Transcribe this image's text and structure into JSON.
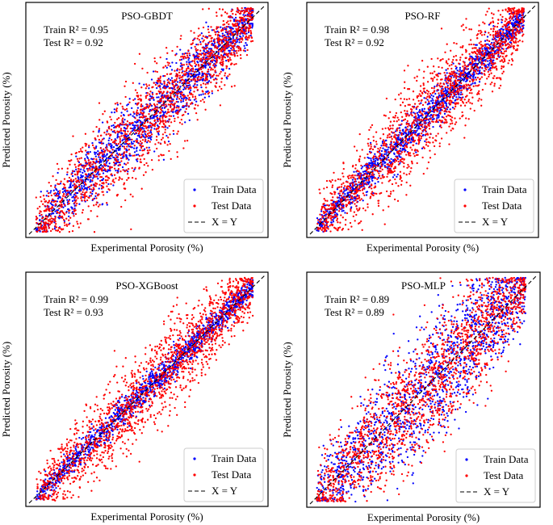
{
  "chart_data": [
    {
      "type": "scatter",
      "title": "PSO-GBDT",
      "xlabel": "Experimental Porosity (%)",
      "ylabel": "Predicted Porosity (%)",
      "annotations": [
        "Train R² = 0.95",
        "Test R² = 0.92"
      ],
      "xlim": [
        0,
        1
      ],
      "ylim": [
        0,
        1
      ],
      "series": [
        {
          "name": "Train Data",
          "color": "#0000ff",
          "r2": 0.95
        },
        {
          "name": "Test Data",
          "color": "#ff0000",
          "r2": 0.92
        }
      ],
      "reference_line": {
        "name": "X = Y",
        "style": "dashed",
        "color": "#000000"
      },
      "legend": [
        "Train Data",
        "Test Data",
        "X = Y"
      ],
      "legend_position": "bottom-right"
    },
    {
      "type": "scatter",
      "title": "PSO-RF",
      "xlabel": "Experimental Porosity (%)",
      "ylabel": "Predicted Porosity (%)",
      "annotations": [
        "Train R² = 0.98",
        "Test R² = 0.92"
      ],
      "xlim": [
        0,
        1
      ],
      "ylim": [
        0,
        1
      ],
      "series": [
        {
          "name": "Train Data",
          "color": "#0000ff",
          "r2": 0.98
        },
        {
          "name": "Test Data",
          "color": "#ff0000",
          "r2": 0.92
        }
      ],
      "reference_line": {
        "name": "X = Y",
        "style": "dashed",
        "color": "#000000"
      },
      "legend": [
        "Train Data",
        "Test Data",
        "X = Y"
      ],
      "legend_position": "bottom-right"
    },
    {
      "type": "scatter",
      "title": "PSO-XGBoost",
      "xlabel": "Experimental Porosity (%)",
      "ylabel": "Predicted Porosity (%)",
      "annotations": [
        "Train R² = 0.99",
        "Test R² = 0.93"
      ],
      "xlim": [
        0,
        1
      ],
      "ylim": [
        0,
        1
      ],
      "series": [
        {
          "name": "Train Data",
          "color": "#0000ff",
          "r2": 0.99
        },
        {
          "name": "Test Data",
          "color": "#ff0000",
          "r2": 0.93
        }
      ],
      "reference_line": {
        "name": "X = Y",
        "style": "dashed",
        "color": "#000000"
      },
      "legend": [
        "Train Data",
        "Test Data",
        "X = Y"
      ],
      "legend_position": "bottom-right"
    },
    {
      "type": "scatter",
      "title": "PSO-MLP",
      "xlabel": "Experimental Porosity (%)",
      "ylabel": "Predicted Porosity (%)",
      "annotations": [
        "Train R² = 0.89",
        "Test R² = 0.89"
      ],
      "xlim": [
        0,
        1
      ],
      "ylim": [
        0,
        1
      ],
      "series": [
        {
          "name": "Train Data",
          "color": "#0000ff",
          "r2": 0.89
        },
        {
          "name": "Test Data",
          "color": "#ff0000",
          "r2": 0.89
        }
      ],
      "reference_line": {
        "name": "X = Y",
        "style": "dashed",
        "color": "#000000"
      },
      "legend": [
        "Train Data",
        "Test Data",
        "X = Y"
      ],
      "legend_position": "bottom-right"
    }
  ]
}
